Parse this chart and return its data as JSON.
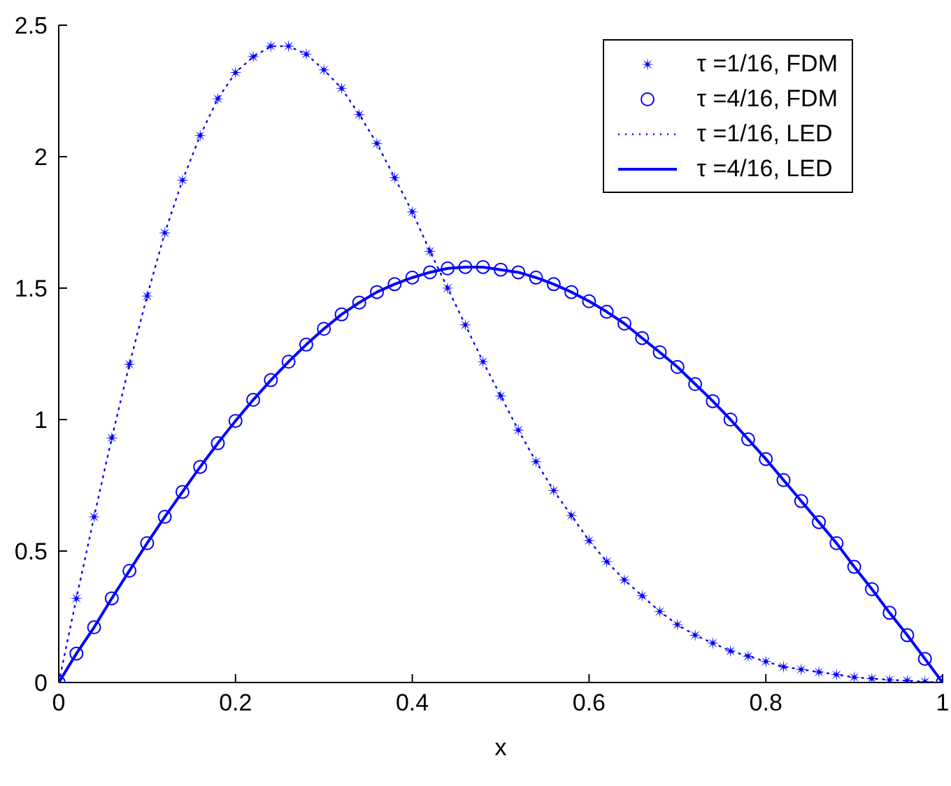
{
  "chart_data": {
    "type": "line",
    "xlabel": "x",
    "x": [
      0,
      0.02,
      0.04,
      0.06,
      0.08,
      0.1,
      0.12,
      0.14,
      0.16,
      0.18,
      0.2,
      0.22,
      0.24,
      0.26,
      0.28,
      0.3,
      0.32,
      0.34,
      0.36,
      0.38,
      0.4,
      0.42,
      0.44,
      0.46,
      0.48,
      0.5,
      0.52,
      0.54,
      0.56,
      0.58,
      0.6,
      0.62,
      0.64,
      0.66,
      0.68,
      0.7,
      0.72,
      0.74,
      0.76,
      0.78,
      0.8,
      0.82,
      0.84,
      0.86,
      0.88,
      0.9,
      0.92,
      0.94,
      0.96,
      0.98,
      1
    ],
    "series": [
      {
        "name": "τ =1/16, FDM",
        "type": "scatter",
        "marker": "star",
        "color": "#0000ff",
        "values": [
          0,
          0.32,
          0.63,
          0.93,
          1.21,
          1.47,
          1.71,
          1.91,
          2.08,
          2.22,
          2.32,
          2.38,
          2.42,
          2.42,
          2.39,
          2.33,
          2.26,
          2.16,
          2.05,
          1.92,
          1.79,
          1.64,
          1.5,
          1.36,
          1.22,
          1.09,
          0.96,
          0.84,
          0.73,
          0.635,
          0.54,
          0.46,
          0.39,
          0.33,
          0.27,
          0.22,
          0.18,
          0.15,
          0.12,
          0.1,
          0.08,
          0.06,
          0.05,
          0.04,
          0.03,
          0.02,
          0.015,
          0.01,
          0.007,
          0.003,
          0
        ]
      },
      {
        "name": "τ =4/16, FDM",
        "type": "scatter",
        "marker": "circle",
        "color": "#0000ff",
        "values": [
          0,
          0.11,
          0.21,
          0.32,
          0.425,
          0.53,
          0.63,
          0.725,
          0.82,
          0.91,
          0.995,
          1.075,
          1.15,
          1.22,
          1.285,
          1.345,
          1.4,
          1.445,
          1.485,
          1.515,
          1.54,
          1.56,
          1.575,
          1.58,
          1.58,
          1.57,
          1.56,
          1.54,
          1.515,
          1.485,
          1.45,
          1.41,
          1.365,
          1.31,
          1.256,
          1.2,
          1.135,
          1.07,
          1,
          0.925,
          0.85,
          0.77,
          0.69,
          0.61,
          0.53,
          0.44,
          0.355,
          0.265,
          0.18,
          0.09,
          0
        ]
      },
      {
        "name": "τ =1/16, LED",
        "marker": "none",
        "line_style": "dotted",
        "color": "#0000ff",
        "values": [
          0,
          0.32,
          0.63,
          0.93,
          1.21,
          1.47,
          1.71,
          1.91,
          2.08,
          2.22,
          2.32,
          2.38,
          2.42,
          2.42,
          2.39,
          2.33,
          2.26,
          2.16,
          2.05,
          1.92,
          1.79,
          1.64,
          1.5,
          1.36,
          1.22,
          1.09,
          0.96,
          0.84,
          0.73,
          0.635,
          0.54,
          0.46,
          0.39,
          0.33,
          0.27,
          0.22,
          0.18,
          0.15,
          0.12,
          0.1,
          0.08,
          0.06,
          0.05,
          0.04,
          0.03,
          0.02,
          0.015,
          0.01,
          0.007,
          0.003,
          0
        ]
      },
      {
        "name": "τ =4/16, LED",
        "marker": "none",
        "line_style": "solid",
        "color": "#0000ff",
        "values": [
          0,
          0.11,
          0.21,
          0.32,
          0.425,
          0.53,
          0.63,
          0.725,
          0.82,
          0.91,
          0.995,
          1.075,
          1.15,
          1.22,
          1.285,
          1.345,
          1.4,
          1.445,
          1.485,
          1.515,
          1.54,
          1.56,
          1.575,
          1.58,
          1.58,
          1.57,
          1.56,
          1.54,
          1.515,
          1.485,
          1.45,
          1.41,
          1.365,
          1.31,
          1.256,
          1.2,
          1.135,
          1.07,
          1,
          0.925,
          0.85,
          0.77,
          0.69,
          0.61,
          0.53,
          0.44,
          0.355,
          0.265,
          0.18,
          0.09,
          0
        ]
      }
    ],
    "xlim": [
      0,
      1
    ],
    "xticks": [
      0,
      0.2,
      0.4,
      0.6,
      0.8,
      1
    ],
    "ylim": [
      0,
      2.5
    ],
    "yticks": [
      0,
      0.5,
      1,
      1.5,
      2,
      2.5
    ],
    "legend": "top right"
  }
}
